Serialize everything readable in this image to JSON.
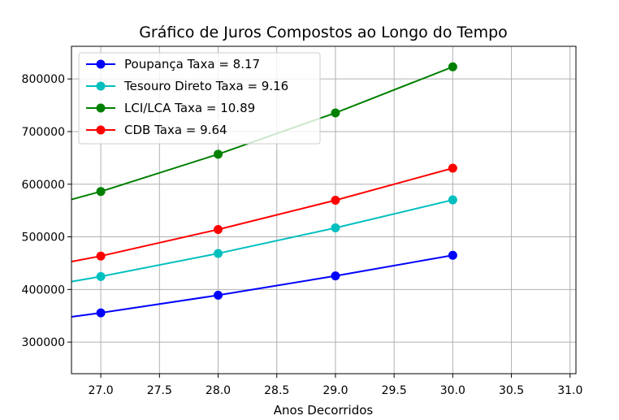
{
  "chart_data": {
    "type": "line",
    "title": "Gráfico de Juros Compostos ao Longo do Tempo",
    "xlabel": "Anos Decorridos",
    "ylabel": "",
    "xlim": [
      26.75,
      31.05
    ],
    "ylim": [
      240000,
      862000
    ],
    "xticks": [
      27.0,
      27.5,
      28.0,
      28.5,
      29.0,
      29.5,
      30.0,
      30.5,
      31.0
    ],
    "xtick_labels": [
      "27.0",
      "27.5",
      "28.0",
      "28.5",
      "29.0",
      "29.5",
      "30.0",
      "30.5",
      "31.0"
    ],
    "yticks": [
      300000,
      400000,
      500000,
      600000,
      700000,
      800000
    ],
    "ytick_labels": [
      "300000",
      "400000",
      "500000",
      "600000",
      "700000",
      "800000"
    ],
    "grid": true,
    "legend_position": "top-left",
    "x": [
      26.75,
      27,
      28,
      29,
      30
    ],
    "series": [
      {
        "name": "Poupança Taxa = 8.17",
        "color": "#0000ff",
        "values": [
          348000,
          355600,
          389100,
          425800,
          465000
        ],
        "markers": [
          false,
          true,
          true,
          true,
          true
        ]
      },
      {
        "name": "Tesouro Direto Taxa = 9.16",
        "color": "#00bfbf",
        "values": [
          415000,
          424700,
          468500,
          517000,
          570200
        ],
        "markers": [
          false,
          true,
          true,
          true,
          true
        ]
      },
      {
        "name": "LCI/LCA Taxa = 10.89",
        "color": "#008000",
        "values": [
          571000,
          586200,
          657000,
          735500,
          823000
        ],
        "markers": [
          false,
          true,
          true,
          true,
          true
        ]
      },
      {
        "name": "CDB Taxa = 9.64",
        "color": "#ff0000",
        "values": [
          453000,
          463500,
          514000,
          569500,
          630500
        ],
        "markers": [
          false,
          true,
          true,
          true,
          true
        ]
      }
    ]
  }
}
